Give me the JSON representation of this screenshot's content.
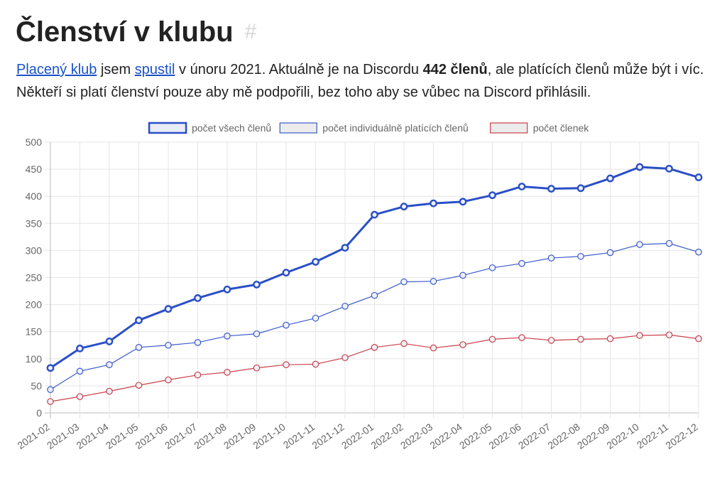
{
  "article": {
    "title": "Členství v klubu",
    "anchor": "#",
    "intro": {
      "link1": "Placený klub",
      "t1": " jsem ",
      "link2": "spustil",
      "t2": " v únoru 2021. Aktuálně je na Discordu ",
      "bold": "442 členů",
      "t3": ", ale platících členů může být i víc. Někteří si platí členství pouze aby mě podpořili, bez toho aby se vůbec na Discord přihlásili."
    }
  },
  "chart_data": {
    "type": "line",
    "title": "",
    "xlabel": "",
    "ylabel": "",
    "ylim": [
      0,
      500
    ],
    "yticks": [
      0,
      50,
      100,
      150,
      200,
      250,
      300,
      350,
      400,
      450,
      500
    ],
    "grid": true,
    "legend": "top-center",
    "categories": [
      "2021-02",
      "2021-03",
      "2021-04",
      "2021-05",
      "2021-06",
      "2021-07",
      "2021-08",
      "2021-09",
      "2021-10",
      "2021-11",
      "2021-12",
      "2022-01",
      "2022-02",
      "2022-03",
      "2022-04",
      "2022-05",
      "2022-06",
      "2022-07",
      "2022-08",
      "2022-09",
      "2022-10",
      "2022-11",
      "2022-12"
    ],
    "series": [
      {
        "name": "počet všech členů",
        "color": "#2a4fc6",
        "bold": true,
        "values": [
          83,
          119,
          132,
          171,
          192,
          212,
          228,
          237,
          259,
          279,
          305,
          366,
          381,
          387,
          390,
          402,
          418,
          414,
          415,
          433,
          454,
          451,
          435
        ]
      },
      {
        "name": "počet individuálně platících členů",
        "color": "#3b5bcc",
        "bold": false,
        "values": [
          43,
          77,
          89,
          121,
          125,
          130,
          142,
          146,
          162,
          175,
          197,
          217,
          242,
          243,
          254,
          268,
          276,
          286,
          289,
          296,
          311,
          313,
          297
        ]
      },
      {
        "name": "počet členek",
        "color": "#c9404a",
        "bold": false,
        "values": [
          21,
          30,
          40,
          51,
          61,
          70,
          75,
          83,
          89,
          90,
          102,
          121,
          128,
          120,
          126,
          136,
          139,
          134,
          136,
          137,
          143,
          144,
          137
        ]
      }
    ]
  }
}
